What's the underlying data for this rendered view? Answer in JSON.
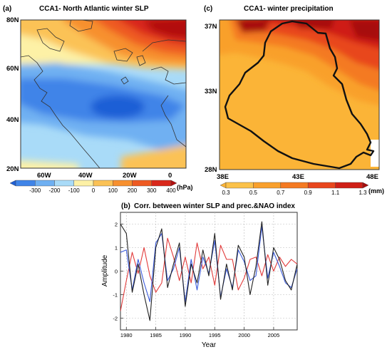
{
  "panels": {
    "a": {
      "label": "(a)",
      "title": "CCA1- North Atlantic winter SLP",
      "lat_labels": [
        "80N",
        "60N",
        "40N",
        "20N"
      ],
      "lon_labels": [
        "60W",
        "40W",
        "20W",
        "0"
      ],
      "colorbar": {
        "ticks": [
          "-300",
          "-200",
          "-100",
          "0",
          "100",
          "200",
          "300",
          "400"
        ],
        "unit": "(hPa)",
        "colors": [
          "#1f5fd6",
          "#3f84e8",
          "#6fb0f2",
          "#a9dbf8",
          "#fdf1a6",
          "#fbc256",
          "#f7902f",
          "#ee5a22",
          "#d9281b",
          "#b20f0f"
        ]
      }
    },
    "c": {
      "label": "(c)",
      "title": "CCA1- winter precipitation",
      "lat_labels": [
        "37N",
        "33N",
        "28N"
      ],
      "lon_labels": [
        "38E",
        "43E",
        "48E"
      ],
      "colorbar": {
        "ticks": [
          "0.3",
          "0.5",
          "0.7",
          "0.9",
          "1.1",
          "1.3"
        ],
        "unit": "(mm)",
        "colors": [
          "#fbb437",
          "#fbc24a",
          "#f9a02c",
          "#f47a22",
          "#e8461c",
          "#cf1f16",
          "#a70d0d"
        ]
      }
    }
  },
  "chart_data": {
    "type": "line",
    "label": "(b)",
    "title": "Corr. between winter SLP and prec.&NAO index",
    "xlabel": "Year",
    "ylabel": "Amplitude",
    "xlim": [
      1979,
      2009
    ],
    "ylim": [
      -2.5,
      2.5
    ],
    "x_ticks": [
      1980,
      1985,
      1990,
      1995,
      2000,
      2005
    ],
    "y_ticks": [
      -2,
      -1,
      0,
      1,
      2
    ],
    "grid": true,
    "x": [
      1979,
      1980,
      1981,
      1982,
      1983,
      1984,
      1985,
      1986,
      1987,
      1988,
      1989,
      1990,
      1991,
      1992,
      1993,
      1994,
      1995,
      1996,
      1997,
      1998,
      1999,
      2000,
      2001,
      2002,
      2003,
      2004,
      2005,
      2006,
      2007,
      2008,
      2009
    ],
    "series": [
      {
        "color": "#222222",
        "values": [
          2.0,
          1.6,
          -0.9,
          0.3,
          -1.0,
          -2.1,
          1.0,
          1.8,
          -0.7,
          0.3,
          1.2,
          -1.5,
          0.3,
          -0.5,
          0.9,
          -0.2,
          1.6,
          -1.2,
          0.3,
          -0.8,
          1.1,
          0.6,
          -1.0,
          0.2,
          2.1,
          -0.6,
          1.0,
          0.5,
          -0.4,
          -0.8,
          0.3
        ]
      },
      {
        "color": "#3b5bdb",
        "values": [
          0.8,
          0.9,
          -0.8,
          0.5,
          -0.5,
          -1.3,
          1.2,
          1.6,
          -0.4,
          0.1,
          1.0,
          -1.3,
          0.5,
          -0.8,
          0.6,
          -0.1,
          1.3,
          -1.1,
          0.1,
          -0.7,
          0.9,
          0.4,
          -0.4,
          -0.2,
          1.9,
          -0.3,
          0.8,
          0.2,
          -0.5,
          -0.7,
          0.1
        ]
      },
      {
        "color": "#e23b3b",
        "values": [
          -1.7,
          -0.4,
          0.8,
          -0.1,
          1.0,
          -0.2,
          -0.9,
          -0.5,
          1.4,
          0.6,
          -0.4,
          0.6,
          -0.5,
          1.2,
          0.1,
          0.6,
          -0.6,
          1.1,
          0.5,
          0.5,
          -0.8,
          -0.3,
          0.5,
          0.6,
          -0.2,
          0.7,
          0.0,
          0.6,
          0.2,
          0.5,
          0.3
        ]
      }
    ]
  }
}
